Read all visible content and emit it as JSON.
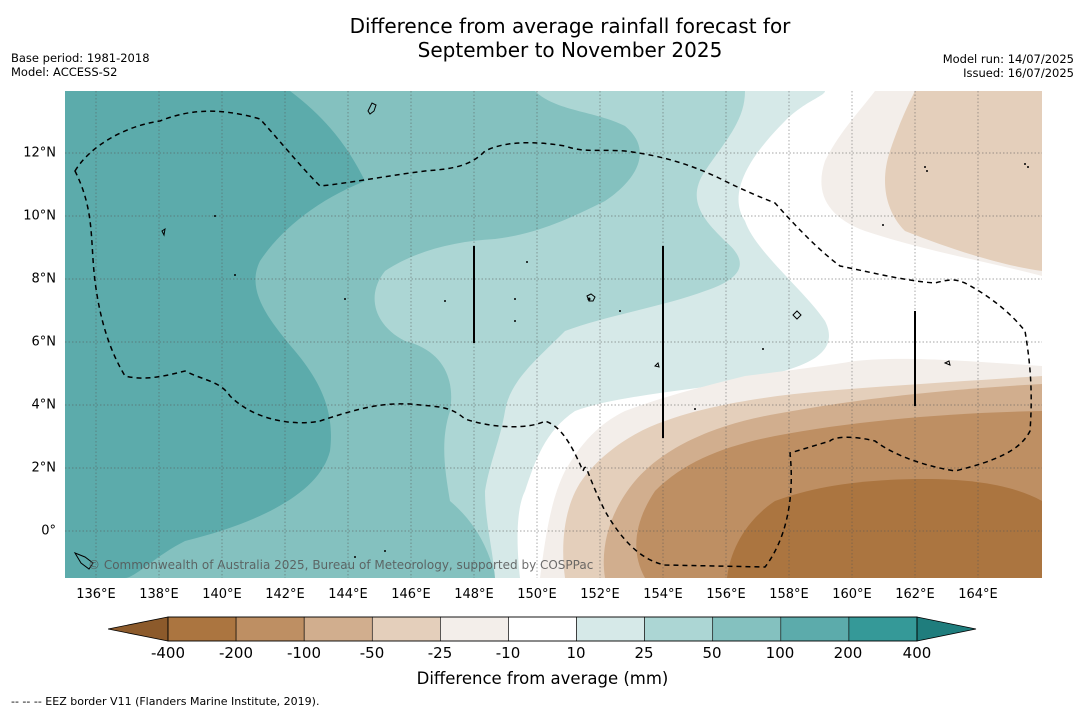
{
  "title_line1": "Difference from average rainfall forecast for",
  "title_line2": "September to November 2025",
  "meta_left": {
    "base_period": "Base period: 1981-2018",
    "model": "Model: ACCESS-S2"
  },
  "meta_right": {
    "model_run": "Model run: 14/07/2025",
    "issued": "Issued: 16/07/2025"
  },
  "copyright": "© Commonwealth of Australia 2025, Bureau of Meteorology, supported by COSPPac",
  "x_ticks": [
    "136°E",
    "138°E",
    "140°E",
    "142°E",
    "144°E",
    "146°E",
    "148°E",
    "150°E",
    "152°E",
    "154°E",
    "156°E",
    "158°E",
    "160°E",
    "162°E",
    "164°E"
  ],
  "y_ticks": [
    "12°N",
    "10°N",
    "8°N",
    "6°N",
    "4°N",
    "2°N",
    "0°"
  ],
  "colorbar": {
    "labels": [
      "-400",
      "-200",
      "-100",
      "-50",
      "-25",
      "-10",
      "10",
      "25",
      "50",
      "100",
      "200",
      "400"
    ],
    "colors": [
      "#ab7540",
      "#be8f63",
      "#d1ae8e",
      "#e4cfbb",
      "#f3eeea",
      "#ffffff",
      "#d6e9e8",
      "#acd6d4",
      "#84c1bf",
      "#5cabab",
      "#359998"
    ],
    "title": "Difference from average (mm)"
  },
  "footnote": "--  --  -- EEZ border V11 (Flanders Marine Institute, 2019).",
  "colors": {
    "grid": "#555555",
    "eez": "#000000"
  }
}
